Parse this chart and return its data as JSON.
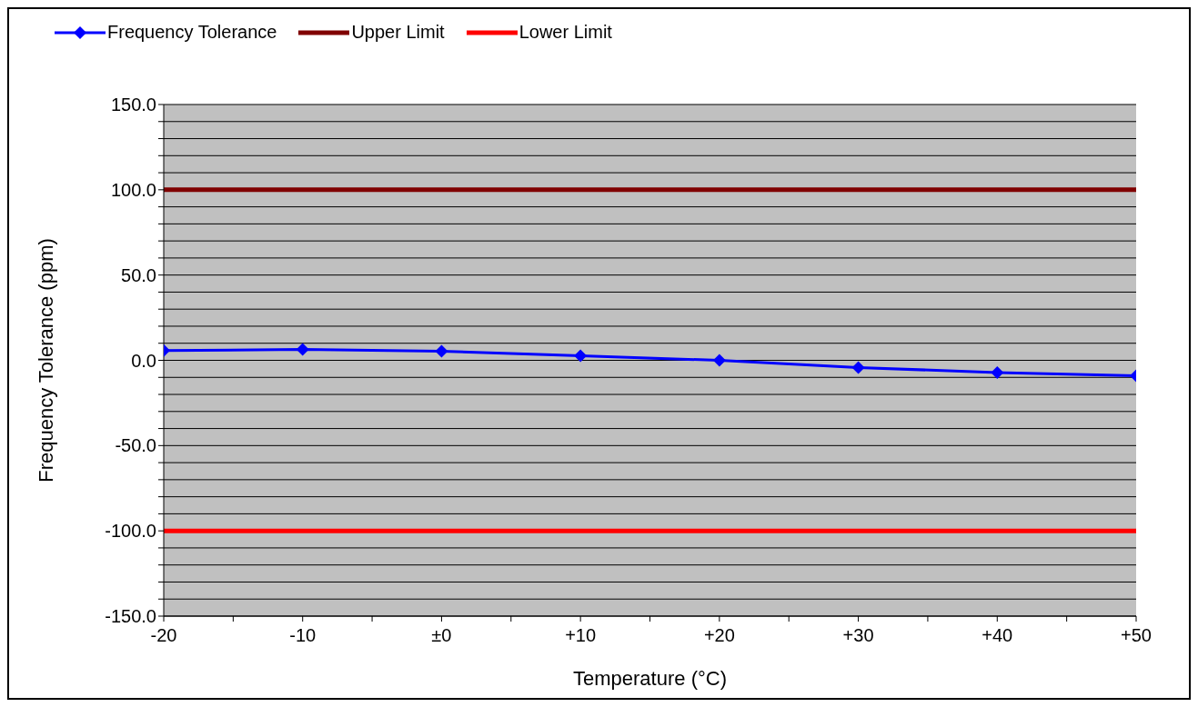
{
  "chart_data": {
    "type": "line",
    "xlabel": "Temperature (°C)",
    "ylabel": "Frequency Tolerance (ppm)",
    "x": [
      -20,
      -10,
      0,
      10,
      20,
      30,
      40,
      50
    ],
    "series": [
      {
        "name": "Frequency Tolerance",
        "color": "#0000ff",
        "marker": "diamond",
        "values": [
          5.7,
          6.4,
          5.3,
          2.6,
          0,
          -4.2,
          -7.2,
          -9
        ]
      },
      {
        "name": "Upper Limit",
        "color": "#800000",
        "marker": "none",
        "values": [
          100,
          100,
          100,
          100,
          100,
          100,
          100,
          100
        ]
      },
      {
        "name": "Lower Limit",
        "color": "#ff0000",
        "marker": "none",
        "values": [
          -100,
          -100,
          -100,
          -100,
          -100,
          -100,
          -100,
          -100
        ]
      }
    ],
    "xlim": [
      -20,
      50
    ],
    "xticks": [
      {
        "value": -20,
        "label": "-20"
      },
      {
        "value": -15,
        "label": null
      },
      {
        "value": -10,
        "label": "-10"
      },
      {
        "value": -5,
        "label": null
      },
      {
        "value": 0,
        "label": "±0"
      },
      {
        "value": 5,
        "label": null
      },
      {
        "value": 10,
        "label": "+10"
      },
      {
        "value": 15,
        "label": null
      },
      {
        "value": 20,
        "label": "+20"
      },
      {
        "value": 25,
        "label": null
      },
      {
        "value": 30,
        "label": "+30"
      },
      {
        "value": 35,
        "label": null
      },
      {
        "value": 40,
        "label": "+40"
      },
      {
        "value": 45,
        "label": null
      },
      {
        "value": 50,
        "label": "+50"
      }
    ],
    "ylim": [
      -150,
      150
    ],
    "yticks": [
      {
        "value": -150,
        "label": "-150.0"
      },
      {
        "value": -140,
        "label": null
      },
      {
        "value": -130,
        "label": null
      },
      {
        "value": -120,
        "label": null
      },
      {
        "value": -110,
        "label": null
      },
      {
        "value": -100,
        "label": "-100.0"
      },
      {
        "value": -90,
        "label": null
      },
      {
        "value": -80,
        "label": null
      },
      {
        "value": -70,
        "label": null
      },
      {
        "value": -60,
        "label": null
      },
      {
        "value": -50,
        "label": "-50.0"
      },
      {
        "value": -40,
        "label": null
      },
      {
        "value": -30,
        "label": null
      },
      {
        "value": -20,
        "label": null
      },
      {
        "value": -10,
        "label": null
      },
      {
        "value": 0,
        "label": "0.0"
      },
      {
        "value": 10,
        "label": null
      },
      {
        "value": 20,
        "label": null
      },
      {
        "value": 30,
        "label": null
      },
      {
        "value": 40,
        "label": null
      },
      {
        "value": 50,
        "label": "50.0"
      },
      {
        "value": 60,
        "label": null
      },
      {
        "value": 70,
        "label": null
      },
      {
        "value": 80,
        "label": null
      },
      {
        "value": 90,
        "label": null
      },
      {
        "value": 100,
        "label": "100.0"
      },
      {
        "value": 110,
        "label": null
      },
      {
        "value": 120,
        "label": null
      },
      {
        "value": 130,
        "label": null
      },
      {
        "value": 140,
        "label": null
      },
      {
        "value": 150,
        "label": "150.0"
      }
    ],
    "grid": "y",
    "legend": "top left"
  }
}
